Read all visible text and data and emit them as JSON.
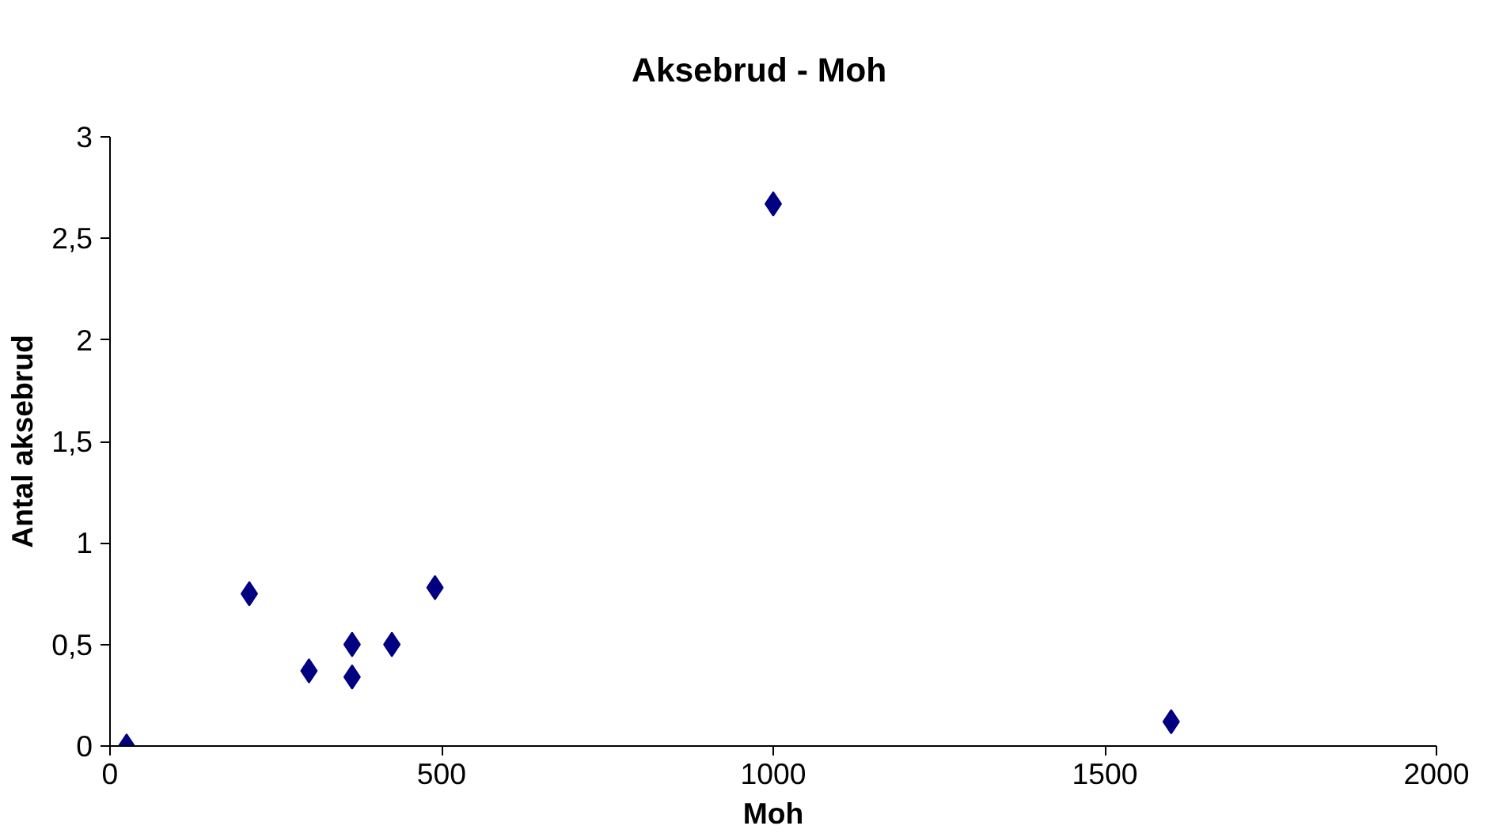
{
  "chart_data": {
    "type": "scatter",
    "title": "Aksebrud  -   Moh",
    "xlabel": "Moh",
    "ylabel": "Antal aksebrud",
    "x": [
      25,
      210,
      300,
      365,
      365,
      425,
      490,
      1000,
      1600
    ],
    "series": [
      {
        "color": "#000080",
        "values": [
          0,
          0.75,
          0.37,
          0.5,
          0.34,
          0.5,
          0.78,
          2.67,
          0.12
        ]
      }
    ],
    "xlim": [
      0,
      2000
    ],
    "xticks": [
      0,
      500,
      1000,
      1500,
      2000
    ],
    "ylim": [
      0,
      3
    ],
    "yticks": [
      0,
      {
        "value": 0.5,
        "label": "0,5"
      },
      1,
      {
        "value": 1.5,
        "label": "1,5"
      },
      2,
      {
        "value": 2.5,
        "label": "2,5"
      },
      3
    ],
    "marker": "diamond"
  }
}
